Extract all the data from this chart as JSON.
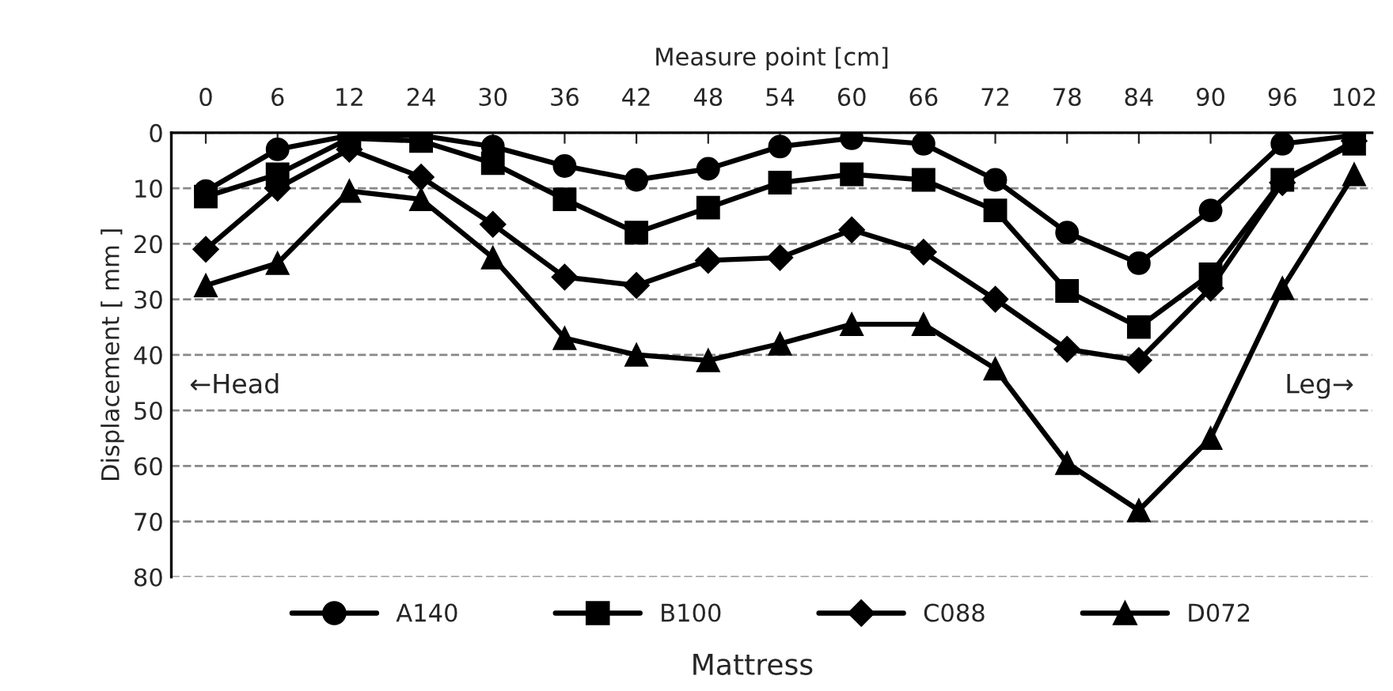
{
  "chart_data": {
    "type": "line",
    "xlabel": "Measure point [cm]",
    "ylabel": "Displacement [ mm ]",
    "legend_title": "Mattress",
    "categories": [
      "0",
      "6",
      "12",
      "24",
      "30",
      "36",
      "42",
      "48",
      "54",
      "60",
      "66",
      "72",
      "78",
      "84",
      "90",
      "96",
      "102"
    ],
    "series": [
      {
        "name": "A140",
        "color": "#000000",
        "marker": "circle",
        "values": [
          10.5,
          3,
          0.5,
          0.5,
          2.5,
          6,
          8.5,
          6.5,
          2.5,
          1,
          2,
          8.5,
          18,
          23.5,
          14,
          2,
          0.5
        ]
      },
      {
        "name": "B100",
        "color": "#000000",
        "marker": "square",
        "values": [
          11.5,
          7.5,
          1,
          1.5,
          5.5,
          12,
          18,
          13.5,
          9,
          7.5,
          8.5,
          14,
          28.5,
          35,
          25.5,
          8.5,
          2
        ]
      },
      {
        "name": "C088",
        "color": "#000000",
        "marker": "diamond",
        "values": [
          21,
          10,
          3,
          8,
          16.5,
          26,
          27.5,
          23,
          22.5,
          17.5,
          21.5,
          30,
          39,
          41,
          28,
          9,
          1.5
        ]
      },
      {
        "name": "D072",
        "color": "#000000",
        "marker": "triangle",
        "values": [
          27.5,
          23.5,
          10.5,
          12,
          22.5,
          37,
          40,
          41,
          38,
          34.5,
          34.5,
          42.5,
          59.5,
          68,
          55,
          28,
          7.5
        ]
      }
    ],
    "ylim": [
      80,
      0
    ],
    "yticks": [
      0,
      10,
      20,
      30,
      40,
      50,
      60,
      70,
      80
    ],
    "grid": "y",
    "legend": "bottom",
    "line_style": "solid",
    "annotations": [
      "←Head",
      "Leg→"
    ]
  }
}
